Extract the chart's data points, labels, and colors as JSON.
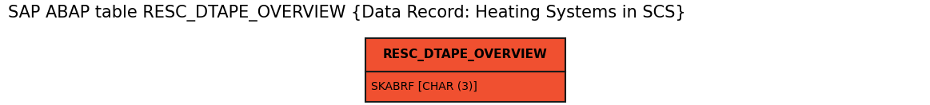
{
  "title": "SAP ABAP table RESC_DTAPE_OVERVIEW {Data Record: Heating Systems in SCS}",
  "title_fontsize": 15,
  "entity_name": "RESC_DTAPE_OVERVIEW",
  "entity_name_fontsize": 11,
  "field_text": "SKABRF [CHAR (3)]",
  "field_fontsize": 10,
  "entity_color": "#F05030",
  "field_color": "#F05030",
  "border_color": "#1A1A1A",
  "text_color": "#000000",
  "background_color": "#ffffff",
  "fig_width": 11.63,
  "fig_height": 1.32,
  "fig_dpi": 100
}
